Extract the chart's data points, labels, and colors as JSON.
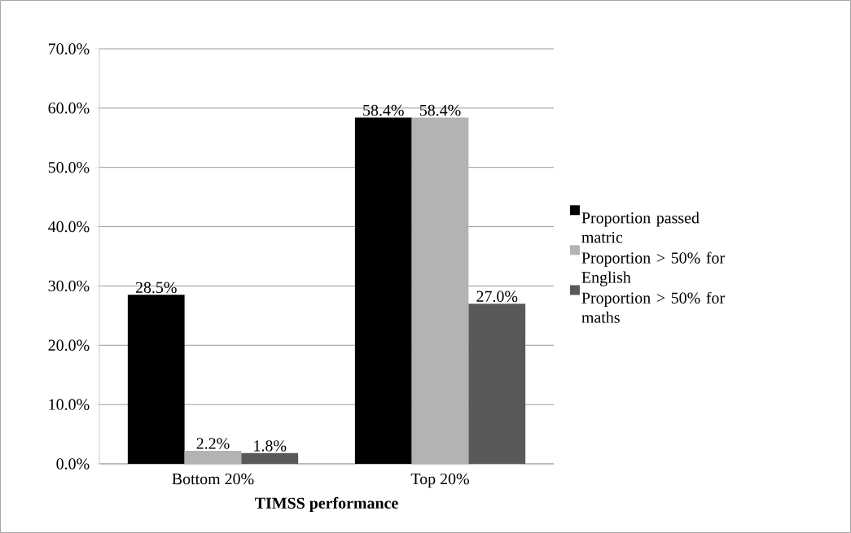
{
  "chart_data": {
    "type": "bar",
    "xlabel": "TIMSS performance",
    "categories": [
      "Bottom 20%",
      "Top 20%"
    ],
    "series": [
      {
        "name": "Proportion passed matric",
        "color": "#000000",
        "values": [
          28.5,
          58.4
        ],
        "value_labels": [
          "28.5%",
          "58.4%"
        ]
      },
      {
        "name": "Proportion > 50% for English",
        "color": "#b3b3b3",
        "values": [
          2.2,
          58.4
        ],
        "value_labels": [
          "2.2%",
          "58.4%"
        ]
      },
      {
        "name": "Proportion > 50% for maths",
        "color": "#595959",
        "values": [
          1.8,
          27.0
        ],
        "value_labels": [
          "1.8%",
          "27.0%"
        ]
      }
    ],
    "ylim": [
      0,
      70
    ],
    "yticks": [
      {
        "value": 0,
        "label": "0.0%"
      },
      {
        "value": 10,
        "label": "10.0%"
      },
      {
        "value": 20,
        "label": "20.0%"
      },
      {
        "value": 30,
        "label": "30.0%"
      },
      {
        "value": 40,
        "label": "40.0%"
      },
      {
        "value": 50,
        "label": "50.0%"
      },
      {
        "value": 60,
        "label": "60.0%"
      },
      {
        "value": 70,
        "label": "70.0%"
      }
    ],
    "grid": "y",
    "legend": "right"
  }
}
